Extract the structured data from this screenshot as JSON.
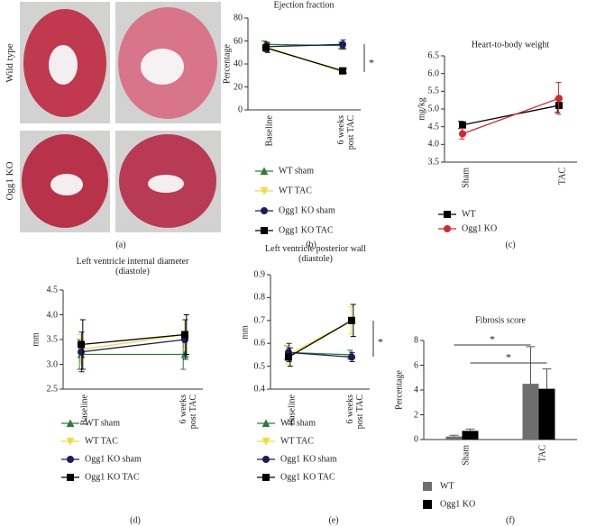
{
  "panel_a": {
    "row_labels": [
      "Wild type",
      "Ogg1 KO"
    ],
    "label": "(a)"
  },
  "chart_data": [
    {
      "type": "line",
      "label": "(b)",
      "title": "Ejection fraction",
      "y_label": "Percentage",
      "categories": [
        "Baseline",
        "6 weeks post TAC"
      ],
      "ylim": [
        0,
        80
      ],
      "yticks": [
        0,
        20,
        40,
        60,
        80
      ],
      "series": [
        {
          "name": "WT sham",
          "color": "#2e7d32",
          "marker": "triangle",
          "values": [
            57,
            56
          ],
          "errors": [
            3,
            3
          ]
        },
        {
          "name": "WT TAC",
          "color": "#f0dc3a",
          "marker": "triangle-down",
          "values": [
            55,
            33
          ],
          "errors": [
            3,
            2
          ]
        },
        {
          "name": "Ogg1 KO sham",
          "color": "#1c1c5c",
          "marker": "circle",
          "values": [
            55,
            57
          ],
          "errors": [
            4,
            4
          ]
        },
        {
          "name": "Ogg1 KO TAC",
          "color": "#000000",
          "marker": "square",
          "values": [
            54,
            34
          ],
          "errors": [
            4,
            2
          ]
        }
      ],
      "annotations": [
        "*"
      ]
    },
    {
      "type": "line",
      "label": "(c)",
      "title": "Heart-to-body weight",
      "y_label": "mg/kg",
      "categories": [
        "Sham",
        "TAC"
      ],
      "ylim": [
        3.5,
        6.5
      ],
      "yticks": [
        3.5,
        {
          "value": 4,
          "label": "4.0"
        },
        4.5,
        {
          "value": 5,
          "label": "5.0"
        },
        5.5,
        {
          "value": 6,
          "label": "6.0"
        },
        6.5
      ],
      "series": [
        {
          "name": "WT",
          "color": "#000000",
          "marker": "square",
          "values": [
            4.55,
            5.1
          ],
          "errors": [
            0.1,
            0.2
          ]
        },
        {
          "name": "Ogg1 KO",
          "color": "#d62728",
          "marker": "circle",
          "values": [
            4.3,
            5.3
          ],
          "errors": [
            0.15,
            0.45
          ]
        }
      ],
      "annotations": []
    },
    {
      "type": "line",
      "label": "(d)",
      "title": "Left ventricle internal diameter (diastole)",
      "y_label": "mm",
      "categories": [
        "Baseline",
        "6 weeks post TAC"
      ],
      "ylim": [
        2.5,
        4.5
      ],
      "yticks": [
        2.5,
        {
          "value": 3,
          "label": "3.0"
        },
        3.5,
        {
          "value": 4,
          "label": "4.0"
        },
        4.5
      ],
      "series": [
        {
          "name": "WT sham",
          "color": "#2e7d32",
          "marker": "triangle",
          "values": [
            3.2,
            3.2
          ],
          "errors": [
            0.3,
            0.3
          ]
        },
        {
          "name": "WT TAC",
          "color": "#f0dc3a",
          "marker": "triangle-down",
          "values": [
            3.3,
            3.6
          ],
          "errors": [
            0.3,
            0.3
          ]
        },
        {
          "name": "Ogg1 KO sham",
          "color": "#1c1c5c",
          "marker": "circle",
          "values": [
            3.25,
            3.5
          ],
          "errors": [
            0.4,
            0.4
          ]
        },
        {
          "name": "Ogg1 KO TAC",
          "color": "#000000",
          "marker": "square",
          "values": [
            3.4,
            3.6
          ],
          "errors": [
            0.5,
            0.4
          ]
        }
      ],
      "annotations": []
    },
    {
      "type": "line",
      "label": "(e)",
      "title": "Left ventricle posterior wall (diastole)",
      "y_label": "mm",
      "categories": [
        "Baseline",
        "6 weeks post TAC"
      ],
      "ylim": [
        0.4,
        0.9
      ],
      "yticks": [
        0.4,
        0.5,
        0.6,
        0.7,
        0.8,
        0.9
      ],
      "series": [
        {
          "name": "WT sham",
          "color": "#2e7d32",
          "marker": "triangle",
          "values": [
            0.56,
            0.55
          ],
          "errors": [
            0.03,
            0.02
          ]
        },
        {
          "name": "WT TAC",
          "color": "#f0dc3a",
          "marker": "triangle-down",
          "values": [
            0.55,
            0.7
          ],
          "errors": [
            0.04,
            0.06
          ]
        },
        {
          "name": "Ogg1 KO sham",
          "color": "#1c1c5c",
          "marker": "circle",
          "values": [
            0.56,
            0.54
          ],
          "errors": [
            0.04,
            0.02
          ]
        },
        {
          "name": "Ogg1 KO TAC",
          "color": "#000000",
          "marker": "square",
          "values": [
            0.54,
            0.7
          ],
          "errors": [
            0.04,
            0.07
          ]
        }
      ],
      "annotations": [
        "*"
      ]
    },
    {
      "type": "bar",
      "label": "(f)",
      "title": "Fibrosis score",
      "y_label": "Percentage",
      "categories": [
        "Sham",
        "TAC"
      ],
      "ylim": [
        0,
        8
      ],
      "yticks": [
        0,
        2,
        4,
        6,
        8
      ],
      "series": [
        {
          "name": "WT",
          "color": "#6e6e6e",
          "values": [
            0.25,
            4.5
          ],
          "errors": [
            0.1,
            3.0
          ]
        },
        {
          "name": "Ogg1 KO",
          "color": "#000000",
          "values": [
            0.7,
            4.1
          ],
          "errors": [
            0.15,
            1.6
          ]
        }
      ],
      "annotations": [
        "*",
        "*"
      ]
    }
  ]
}
